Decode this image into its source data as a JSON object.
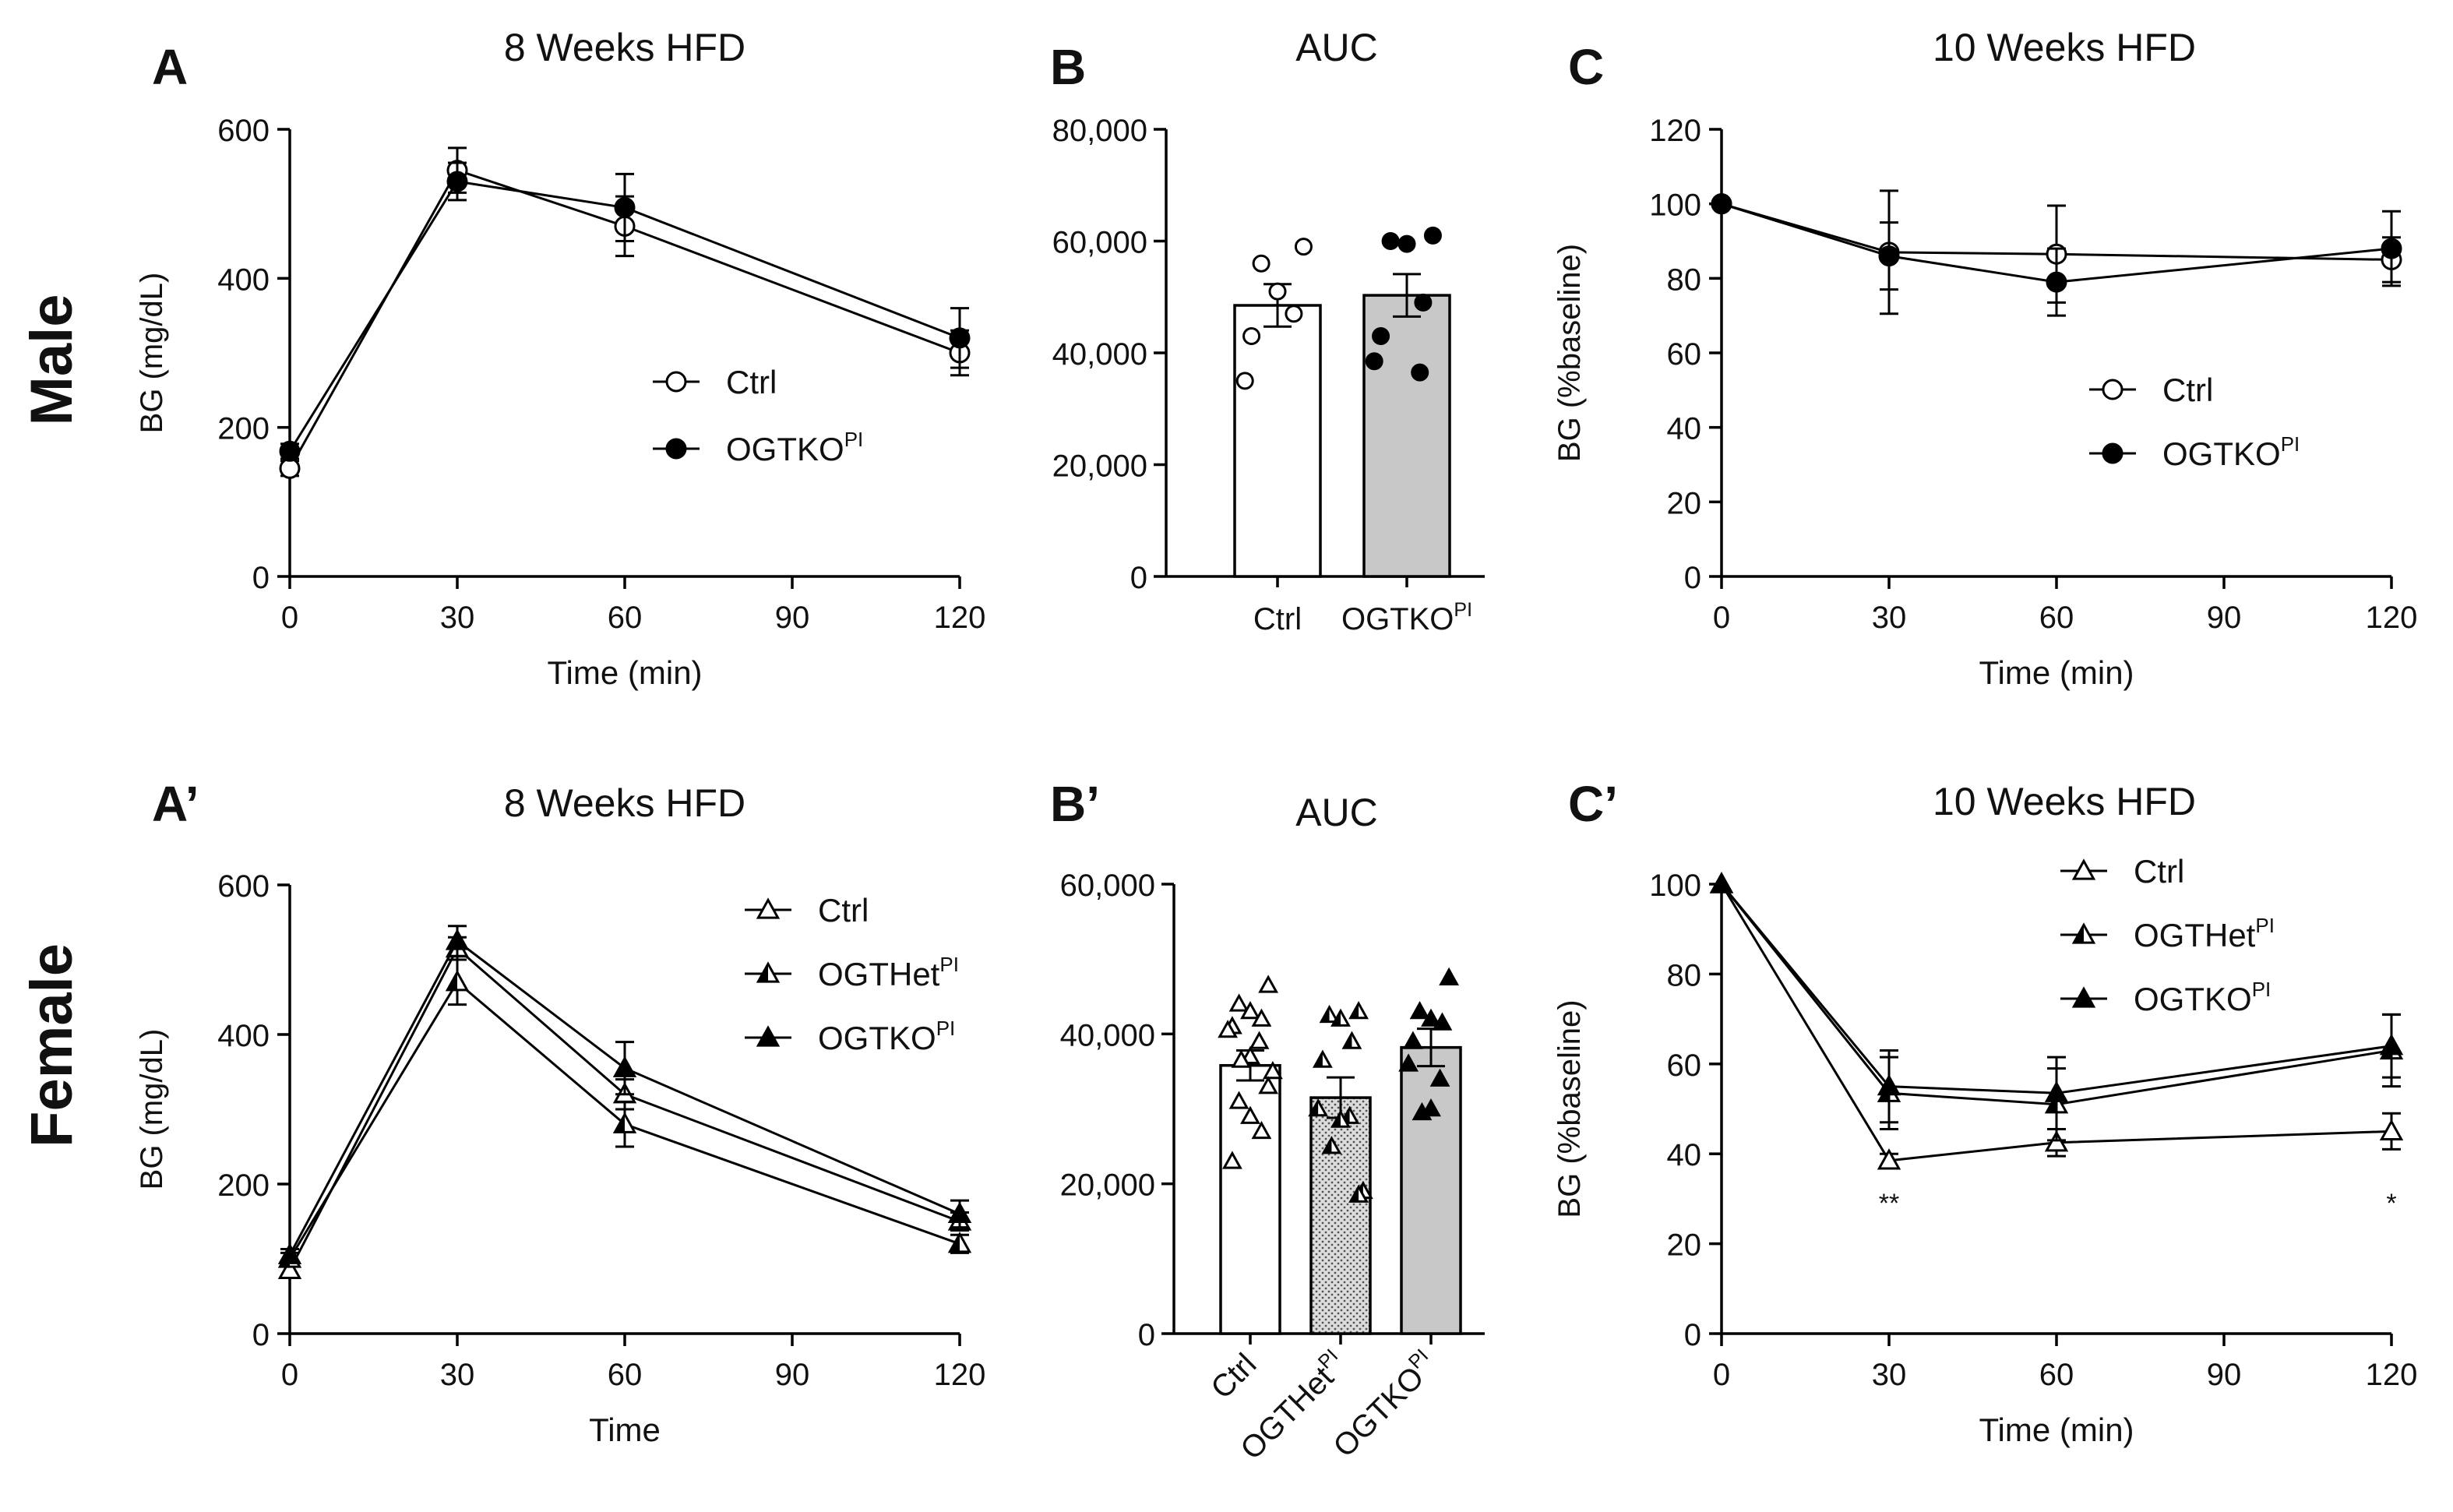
{
  "figure": {
    "row_labels": [
      "Male",
      "Female"
    ]
  },
  "chart_data": [
    {
      "id": "A",
      "panel": "A",
      "type": "line",
      "title": "8 Weeks HFD",
      "xlabel": "Time (min)",
      "ylabel": "BG (mg/dL)",
      "x": [
        0,
        30,
        60,
        120
      ],
      "xticks": [
        0,
        30,
        60,
        90,
        120
      ],
      "xlim": [
        0,
        120
      ],
      "ylim": [
        0,
        600
      ],
      "yticks": [
        0,
        200,
        400,
        600
      ],
      "series": [
        {
          "name": "Ctrl",
          "sup": "",
          "marker": "circle-open",
          "values": [
            145,
            545,
            470,
            300
          ],
          "err": [
            10,
            30,
            40,
            30
          ]
        },
        {
          "name": "OGTKO",
          "sup": "PI",
          "marker": "circle-filled",
          "values": [
            168,
            530,
            495,
            320
          ],
          "err": [
            10,
            25,
            45,
            40
          ]
        }
      ],
      "stats": []
    },
    {
      "id": "B",
      "panel": "B",
      "type": "bar",
      "title": "AUC",
      "xlabel": "",
      "ylabel": "",
      "ylim": [
        0,
        80000
      ],
      "yticks": [
        0,
        20000,
        40000,
        60000,
        80000
      ],
      "ytick_labels": [
        "0",
        "20,000",
        "40,000",
        "60,000",
        "80,000"
      ],
      "categories": [
        {
          "name": "Ctrl",
          "sup": ""
        },
        {
          "name": "OGTKO",
          "sup": "PI"
        }
      ],
      "bar_values": [
        48500,
        50300
      ],
      "bar_err": [
        3800,
        3800
      ],
      "bar_styles": [
        "white",
        "gray"
      ],
      "points": [
        [
          59000,
          56000,
          51000,
          47000,
          43000,
          35000
        ],
        [
          61000,
          60000,
          59500,
          49000,
          43000,
          38500,
          36500
        ]
      ],
      "point_markers": [
        "circle-open",
        "circle-filled"
      ],
      "rotate_labels": false
    },
    {
      "id": "C",
      "panel": "C",
      "type": "line",
      "title": "10 Weeks HFD",
      "xlabel": "Time (min)",
      "ylabel": "BG (%baseline)",
      "x": [
        0,
        30,
        60,
        120
      ],
      "xticks": [
        0,
        30,
        60,
        90,
        120
      ],
      "xlim": [
        0,
        120
      ],
      "ylim": [
        0,
        120
      ],
      "yticks": [
        0,
        20,
        40,
        60,
        80,
        100,
        120
      ],
      "series": [
        {
          "name": "Ctrl",
          "sup": "",
          "marker": "circle-open",
          "values": [
            100,
            87,
            86.5,
            85
          ],
          "err": [
            0,
            16.5,
            13,
            6
          ]
        },
        {
          "name": "OGTKO",
          "sup": "PI",
          "marker": "circle-filled",
          "values": [
            100,
            86,
            79,
            88
          ],
          "err": [
            0,
            9,
            9,
            10
          ]
        }
      ],
      "stats": []
    },
    {
      "id": "A2",
      "panel": "A’",
      "type": "line",
      "title": "8 Weeks HFD",
      "xlabel": "Time",
      "ylabel": "BG (mg/dL)",
      "x": [
        0,
        30,
        60,
        120
      ],
      "xticks": [
        0,
        30,
        60,
        90,
        120
      ],
      "xlim": [
        0,
        120
      ],
      "ylim": [
        0,
        600
      ],
      "yticks": [
        0,
        200,
        400,
        600
      ],
      "series": [
        {
          "name": "Ctrl",
          "sup": "",
          "marker": "triangle-open",
          "values": [
            85,
            515,
            320,
            150
          ],
          "err": [
            8,
            15,
            20,
            12
          ]
        },
        {
          "name": "OGTHet",
          "sup": "PI",
          "marker": "triangle-half",
          "values": [
            100,
            470,
            280,
            120
          ],
          "err": [
            8,
            30,
            30,
            12
          ]
        },
        {
          "name": "OGTKO",
          "sup": "PI",
          "marker": "triangle-filled",
          "values": [
            105,
            525,
            355,
            160
          ],
          "err": [
            8,
            20,
            35,
            18
          ]
        }
      ],
      "stats": []
    },
    {
      "id": "B2",
      "panel": "B’",
      "type": "bar",
      "title": "AUC",
      "xlabel": "",
      "ylabel": "",
      "ylim": [
        0,
        60000
      ],
      "yticks": [
        0,
        20000,
        40000,
        60000
      ],
      "ytick_labels": [
        "0",
        "20,000",
        "40,000",
        "60,000"
      ],
      "categories": [
        {
          "name": "Ctrl",
          "sup": ""
        },
        {
          "name": "OGTHet",
          "sup": "PI"
        },
        {
          "name": "OGTKO",
          "sup": "PI"
        }
      ],
      "bar_values": [
        35800,
        31500,
        38200
      ],
      "bar_err": [
        2000,
        2700,
        2500
      ],
      "bar_styles": [
        "white",
        "dotted",
        "gray"
      ],
      "points": [
        [
          46500,
          44000,
          43000,
          42000,
          41000,
          40500,
          39000,
          37000,
          36500,
          35000,
          33000,
          31000,
          29000,
          27000,
          23000
        ],
        [
          43000,
          42500,
          42000,
          39000,
          36500,
          30000,
          29000,
          28500,
          25000,
          19000,
          18500
        ],
        [
          47500,
          43000,
          42000,
          41500,
          39000,
          36000,
          34000,
          30000,
          29500
        ]
      ],
      "point_markers": [
        "triangle-open",
        "triangle-half",
        "triangle-filled"
      ],
      "rotate_labels": true
    },
    {
      "id": "C2",
      "panel": "C’",
      "type": "line",
      "title": "10 Weeks HFD",
      "xlabel": "Time (min)",
      "ylabel": "BG (%baseline)",
      "x": [
        0,
        30,
        60,
        120
      ],
      "xticks": [
        0,
        30,
        60,
        90,
        120
      ],
      "xlim": [
        0,
        120
      ],
      "ylim": [
        0,
        100
      ],
      "yticks": [
        0,
        20,
        40,
        60,
        80,
        100
      ],
      "series": [
        {
          "name": "Ctrl",
          "sup": "",
          "marker": "triangle-open",
          "values": [
            100,
            38.5,
            42.5,
            45
          ],
          "err": [
            0,
            1.5,
            3,
            4
          ]
        },
        {
          "name": "OGTHet",
          "sup": "PI",
          "marker": "triangle-half",
          "values": [
            100,
            53.5,
            51,
            63
          ],
          "err": [
            0,
            8,
            8,
            8
          ]
        },
        {
          "name": "OGTKO",
          "sup": "PI",
          "marker": "triangle-filled",
          "values": [
            100,
            55,
            53.5,
            64
          ],
          "err": [
            0,
            8,
            8,
            7
          ]
        }
      ],
      "stats": [
        {
          "x": 30,
          "label": "**"
        },
        {
          "x": 120,
          "label": "*"
        }
      ]
    }
  ]
}
